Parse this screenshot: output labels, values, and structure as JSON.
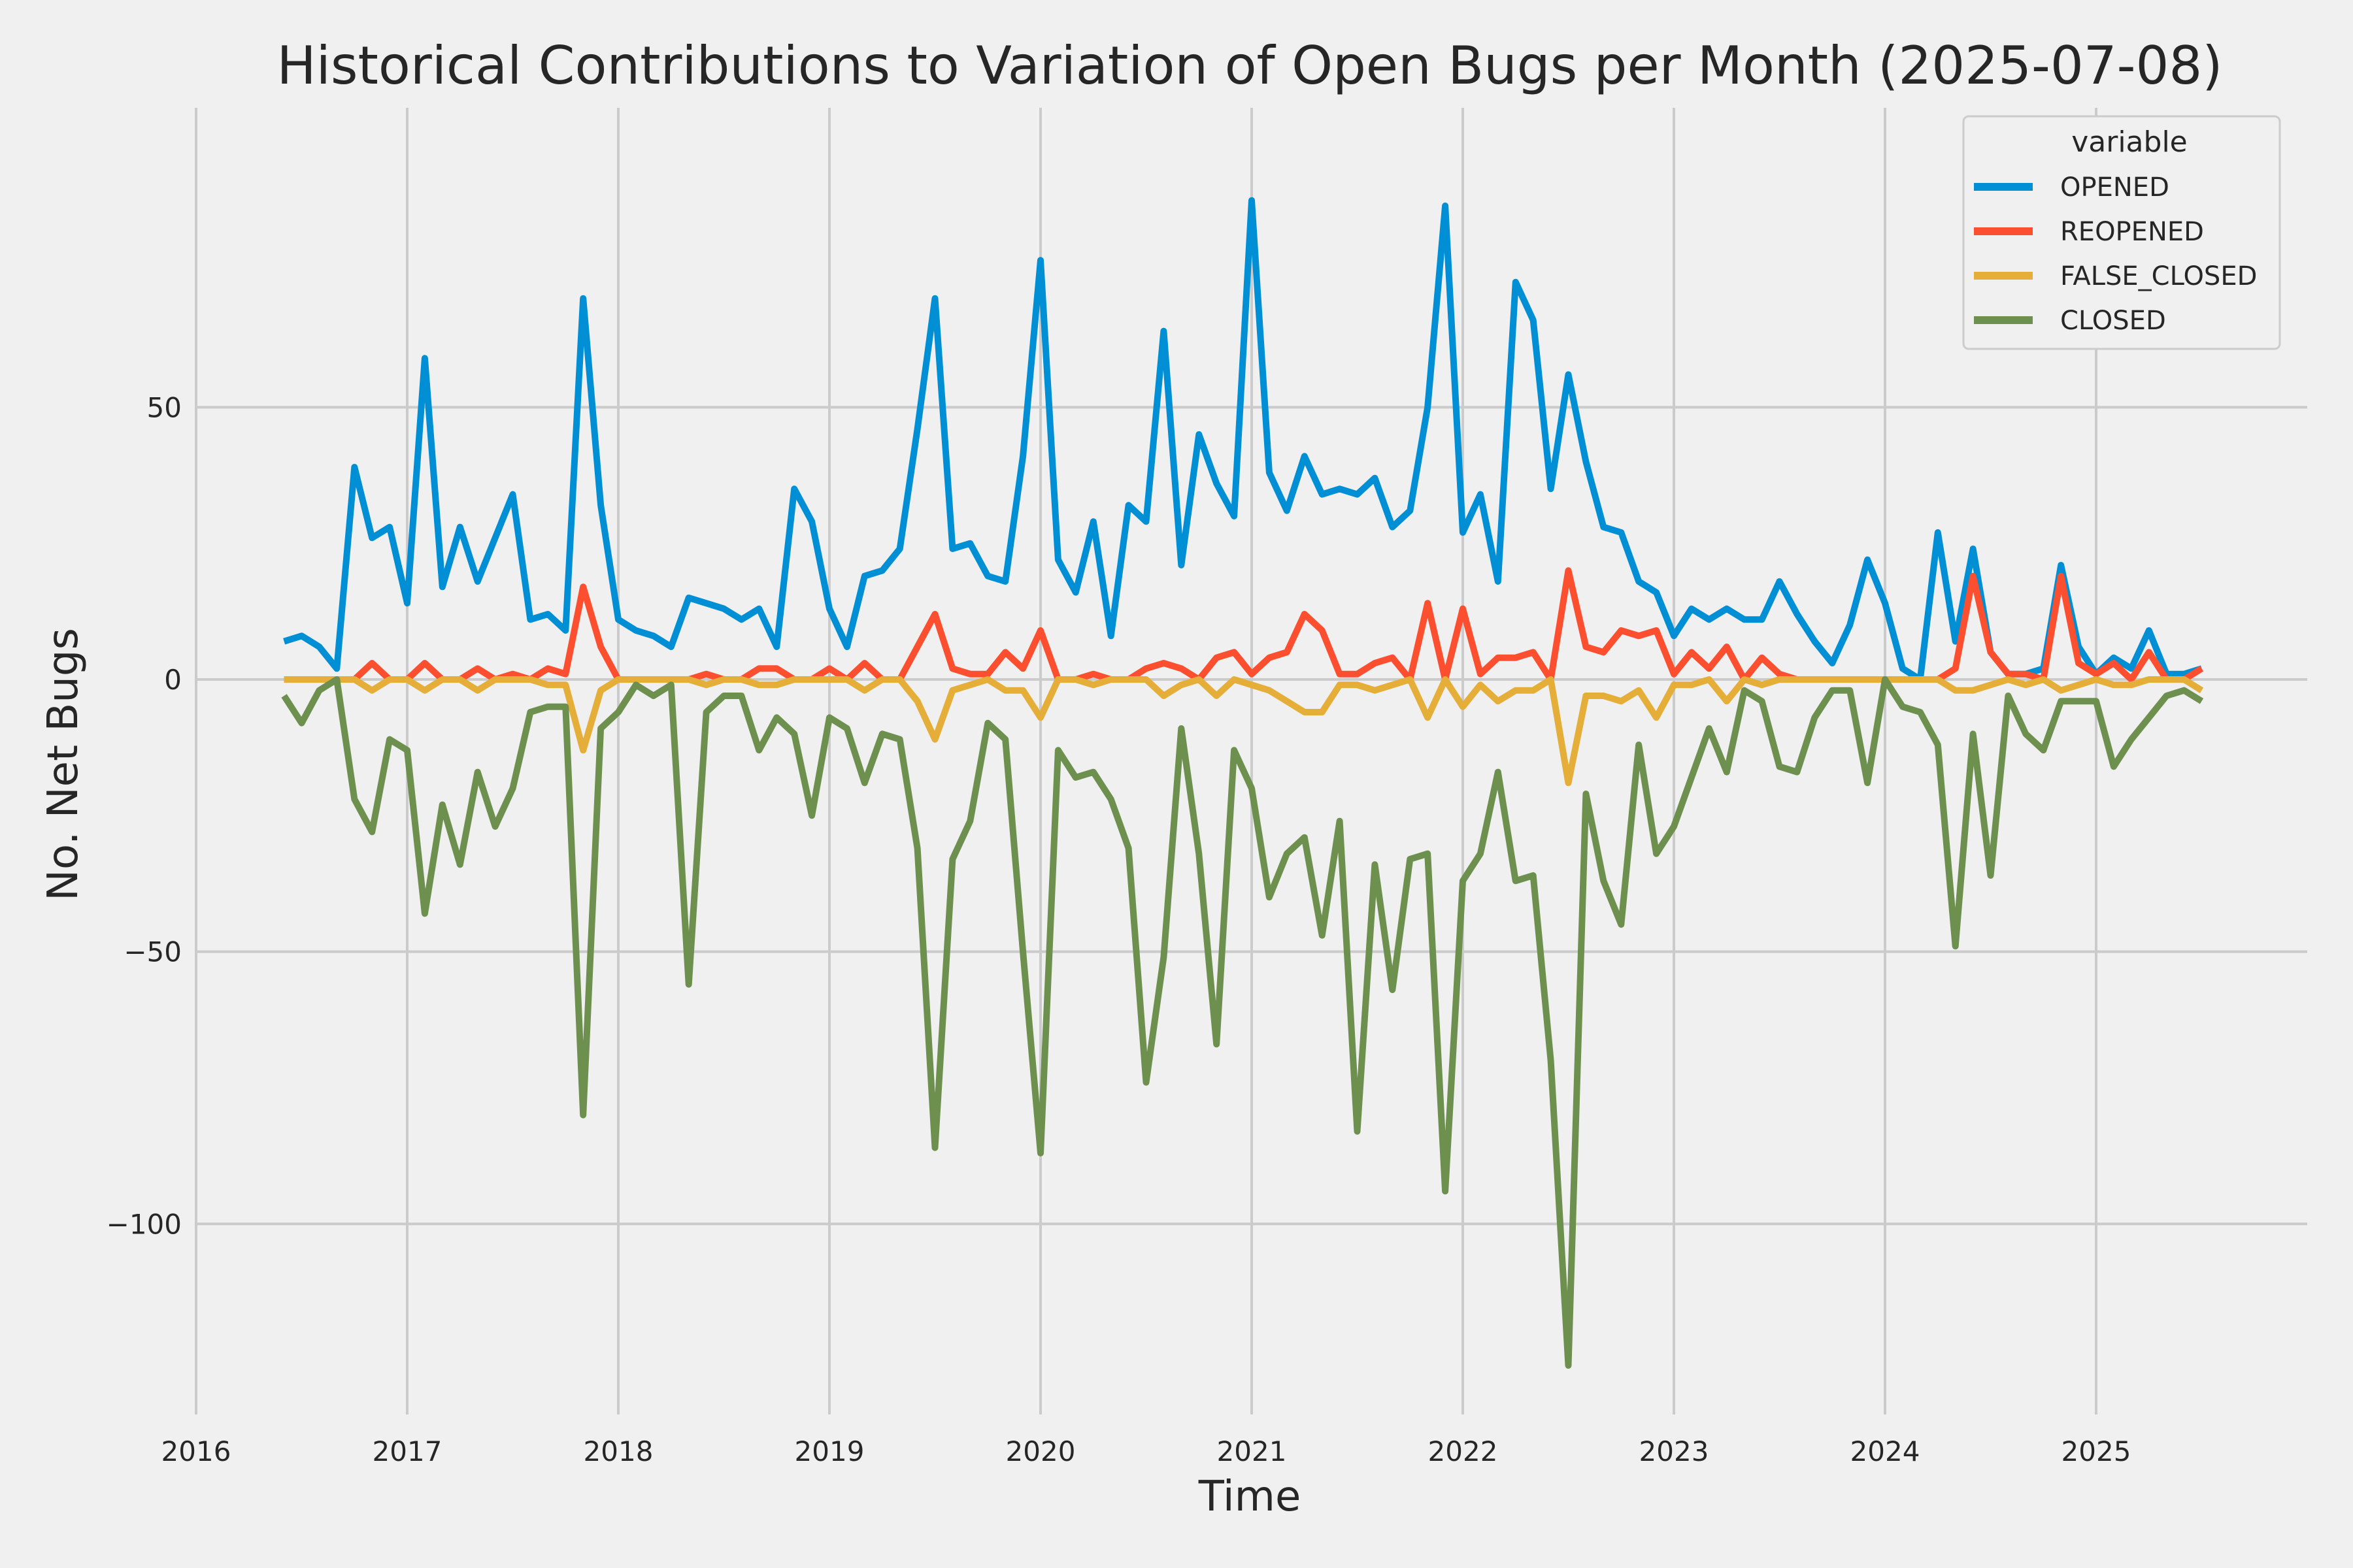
{
  "chart_data": {
    "type": "line",
    "title": "Historical Contributions to Variation of Open Bugs per Month (2025-07-08)",
    "xlabel": "Time",
    "ylabel": "No. Net Bugs",
    "xlim": [
      "2016-01-01",
      "2026-01-01"
    ],
    "ylim": [
      -135,
      105
    ],
    "x_ticks": [
      "2016",
      "2017",
      "2018",
      "2019",
      "2020",
      "2021",
      "2022",
      "2023",
      "2024",
      "2025"
    ],
    "y_ticks": [
      {
        "value": 50,
        "label": "50"
      },
      {
        "value": 0,
        "label": "0"
      },
      {
        "value": -50,
        "label": "−50"
      },
      {
        "value": -100,
        "label": "−100"
      }
    ],
    "grid": true,
    "legend": {
      "title": "variable",
      "placement": "top-right"
    },
    "start_month": "2016-06",
    "series": [
      {
        "name": "OPENED",
        "color": "#008fd5",
        "values": [
          7,
          8,
          6,
          2,
          39,
          26,
          28,
          14,
          59,
          17,
          28,
          18,
          26,
          34,
          11,
          12,
          9,
          70,
          32,
          11,
          9,
          8,
          6,
          15,
          14,
          13,
          11,
          13,
          6,
          35,
          29,
          13,
          6,
          19,
          20,
          24,
          46,
          70,
          24,
          25,
          19,
          18,
          41,
          77,
          22,
          16,
          29,
          8,
          32,
          29,
          64,
          21,
          45,
          36,
          30,
          88,
          38,
          31,
          41,
          34,
          35,
          34,
          37,
          28,
          31,
          50,
          87,
          27,
          34,
          18,
          73,
          66,
          35,
          56,
          40,
          28,
          27,
          18,
          16,
          8,
          13,
          11,
          13,
          11,
          11,
          18,
          12,
          7,
          3,
          10,
          22,
          14,
          2,
          0,
          27,
          7,
          24,
          5,
          1,
          1,
          2,
          21,
          6,
          1,
          4,
          2,
          9,
          1,
          1,
          2
        ]
      },
      {
        "name": "REOPENED",
        "color": "#fc4f30",
        "values": [
          0,
          0,
          0,
          0,
          0,
          3,
          0,
          0,
          3,
          0,
          0,
          2,
          0,
          1,
          0,
          2,
          1,
          17,
          6,
          0,
          0,
          0,
          0,
          0,
          1,
          0,
          0,
          2,
          2,
          0,
          0,
          2,
          0,
          3,
          0,
          0,
          6,
          12,
          2,
          1,
          1,
          5,
          2,
          9,
          0,
          0,
          1,
          0,
          0,
          2,
          3,
          2,
          0,
          4,
          5,
          1,
          4,
          5,
          12,
          9,
          1,
          1,
          3,
          4,
          0,
          14,
          0,
          13,
          1,
          4,
          4,
          5,
          0,
          20,
          6,
          5,
          9,
          8,
          9,
          1,
          5,
          2,
          6,
          0,
          4,
          1,
          0,
          0,
          0,
          0,
          0,
          0,
          0,
          0,
          0,
          2,
          19,
          5,
          1,
          1,
          0,
          19,
          3,
          1,
          3,
          0,
          5,
          0,
          0,
          2
        ]
      },
      {
        "name": "FALSE_CLOSED",
        "color": "#e5ae38",
        "values": [
          0,
          0,
          0,
          0,
          0,
          -2,
          0,
          0,
          -2,
          0,
          0,
          -2,
          0,
          0,
          0,
          -1,
          -1,
          -13,
          -2,
          0,
          0,
          0,
          0,
          0,
          -1,
          0,
          0,
          -1,
          -1,
          0,
          0,
          0,
          0,
          -2,
          0,
          0,
          -4,
          -11,
          -2,
          -1,
          0,
          -2,
          -2,
          -7,
          0,
          0,
          -1,
          0,
          0,
          0,
          -3,
          -1,
          0,
          -3,
          0,
          -1,
          -2,
          -4,
          -6,
          -6,
          -1,
          -1,
          -2,
          -1,
          0,
          -7,
          0,
          -5,
          -1,
          -4,
          -2,
          -2,
          0,
          -19,
          -3,
          -3,
          -4,
          -2,
          -7,
          -1,
          -1,
          0,
          -4,
          0,
          -1,
          0,
          0,
          0,
          0,
          0,
          0,
          0,
          0,
          0,
          0,
          -2,
          -2,
          -1,
          0,
          -1,
          0,
          -2,
          -1,
          0,
          -1,
          -1,
          0,
          0,
          0,
          -2
        ]
      },
      {
        "name": "CLOSED",
        "color": "#6d904f",
        "values": [
          -3,
          -8,
          -2,
          0,
          -22,
          -28,
          -11,
          -13,
          -43,
          -23,
          -34,
          -17,
          -27,
          -20,
          -6,
          -5,
          -5,
          -80,
          -9,
          -6,
          -1,
          -3,
          -1,
          -56,
          -6,
          -3,
          -3,
          -13,
          -7,
          -10,
          -25,
          -7,
          -9,
          -19,
          -10,
          -11,
          -31,
          -86,
          -33,
          -26,
          -8,
          -11,
          -50,
          -87,
          -13,
          -18,
          -17,
          -22,
          -31,
          -74,
          -51,
          -9,
          -32,
          -67,
          -13,
          -20,
          -40,
          -32,
          -29,
          -47,
          -26,
          -83,
          -34,
          -57,
          -33,
          -32,
          -94,
          -37,
          -32,
          -17,
          -37,
          -36,
          -70,
          -126,
          -21,
          -37,
          -45,
          -12,
          -32,
          -27,
          -18,
          -9,
          -17,
          -2,
          -4,
          -16,
          -17,
          -7,
          -2,
          -2,
          -19,
          0,
          -5,
          -6,
          -12,
          -49,
          -10,
          -36,
          -3,
          -10,
          -13,
          -4,
          -4,
          -4,
          -16,
          -11,
          -7,
          -3,
          -2,
          -4
        ]
      }
    ]
  }
}
